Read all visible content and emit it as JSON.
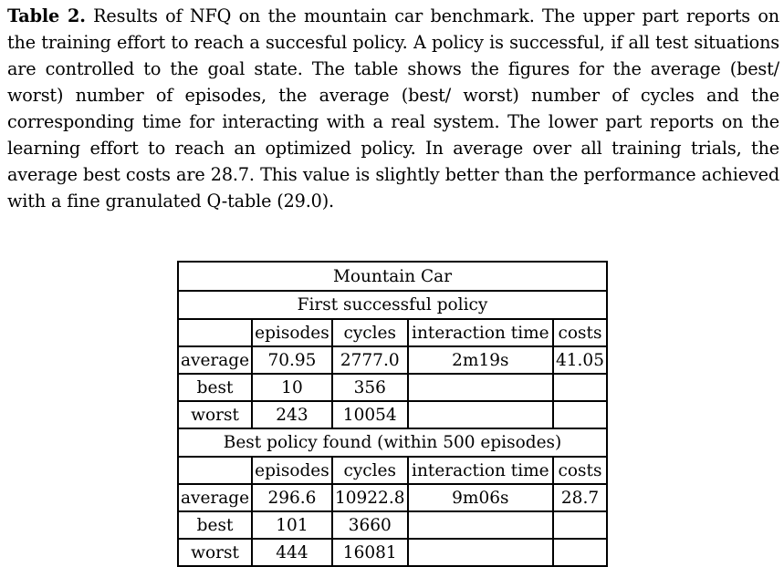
{
  "caption": {
    "label": "Table 2.",
    "text": " Results of NFQ on the mountain car benchmark. The upper part reports on the training effort to reach a succesful policy. A policy is successful, if all test situations are controlled to the goal state. The table shows the figures for the average (best/ worst) number of episodes, the average (best/ worst) number of cycles and the corresponding time for interacting with a real system. The lower part reports on the learning effort to reach an optimized policy. In average over all training trials, the average best costs are 28.7. This value is slightly better than the performance achieved with a fine granulated Q-table (29.0)."
  },
  "table": {
    "title": "Mountain Car",
    "sections": [
      {
        "title": "First successful policy",
        "headers": [
          "",
          "episodes",
          "cycles",
          "interaction time",
          "costs"
        ],
        "rows": [
          {
            "label": "average",
            "episodes": "70.95",
            "cycles": "2777.0",
            "time": "2m19s",
            "costs": "41.05"
          },
          {
            "label": "best",
            "episodes": "10",
            "cycles": "356",
            "time": "",
            "costs": ""
          },
          {
            "label": "worst",
            "episodes": "243",
            "cycles": "10054",
            "time": "",
            "costs": ""
          }
        ]
      },
      {
        "title": "Best policy found (within 500 episodes)",
        "headers": [
          "",
          "episodes",
          "cycles",
          "interaction time",
          "costs"
        ],
        "rows": [
          {
            "label": "average",
            "episodes": "296.6",
            "cycles": "10922.8",
            "time": "9m06s",
            "costs": "28.7"
          },
          {
            "label": "best",
            "episodes": "101",
            "cycles": "3660",
            "time": "",
            "costs": ""
          },
          {
            "label": "worst",
            "episodes": "444",
            "cycles": "16081",
            "time": "",
            "costs": ""
          }
        ]
      }
    ]
  }
}
